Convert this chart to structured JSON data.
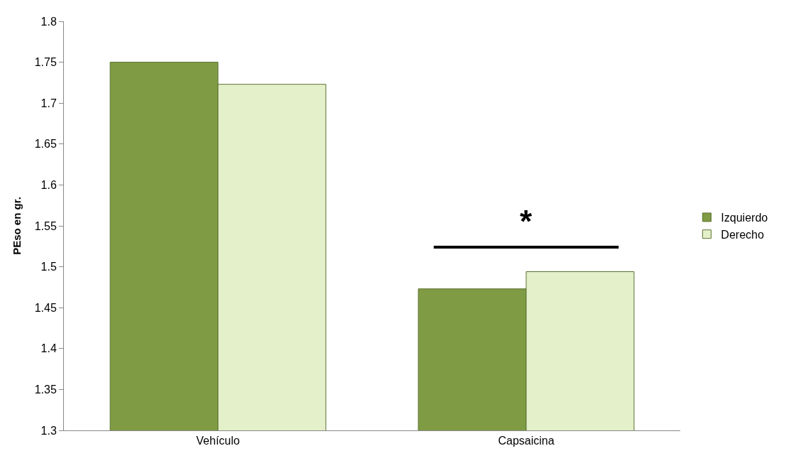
{
  "chart_data": {
    "type": "bar",
    "ylabel": "PEso en gr.",
    "categories": [
      "Vehículo",
      "Capsaicina"
    ],
    "series": [
      {
        "name": "Izquierdo",
        "color": "#7f9c44",
        "values": [
          1.75,
          1.473
        ]
      },
      {
        "name": "Derecho",
        "color": "#e4f0c9",
        "values": [
          1.723,
          1.494
        ]
      }
    ],
    "ylim": [
      1.3,
      1.8
    ],
    "yticks": [
      1.3,
      1.35,
      1.4,
      1.45,
      1.5,
      1.55,
      1.6,
      1.65,
      1.7,
      1.75,
      1.8
    ],
    "annotations": [
      "*"
    ],
    "legend": "right"
  }
}
